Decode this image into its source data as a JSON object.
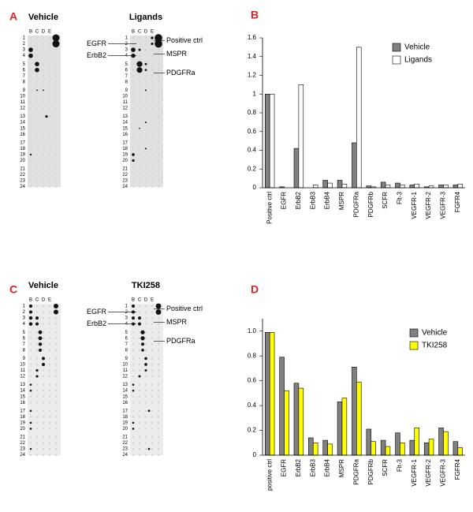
{
  "panel_labels": [
    "A",
    "B",
    "C",
    "D"
  ],
  "blot_rows": [
    1,
    2,
    3,
    4,
    5,
    6,
    7,
    8,
    9,
    10,
    11,
    12,
    13,
    14,
    15,
    16,
    17,
    18,
    19,
    20,
    21,
    22,
    23,
    24
  ],
  "blot_columns": [
    "B",
    "C",
    "D",
    "E"
  ],
  "blots": [
    {
      "title": "Vehicle"
    },
    {
      "title": "Ligands",
      "left_labels": [
        "EGFR",
        "ErbB2"
      ],
      "right_labels": [
        "Positive ctrl",
        "MSPR",
        "PDGFRa"
      ]
    },
    {
      "title": "Vehicle"
    },
    {
      "title": "TKI258",
      "left_labels": [
        "EGFR",
        "ErbB2"
      ],
      "right_labels": [
        "Positive ctrl",
        "MSPR",
        "PDGFRa"
      ]
    }
  ],
  "chart_data": [
    {
      "type": "bar",
      "categories": [
        "Positive ctrl",
        "EGFR",
        "ErbB2",
        "ErbB3",
        "ErbB4",
        "MSPR",
        "PDGFRa",
        "PDGFRb",
        "SCFR",
        "Flt-3",
        "VEGFR-1",
        "VEGFR-2",
        "VEGFR-3",
        "FGFR4"
      ],
      "series": [
        {
          "name": "Vehicle",
          "color": "#808080",
          "values": [
            1.0,
            0.01,
            0.42,
            0.0,
            0.08,
            0.08,
            0.48,
            0.02,
            0.06,
            0.05,
            0.03,
            0.01,
            0.03,
            0.03
          ]
        },
        {
          "name": "Ligands",
          "color": "#ffffff",
          "values": [
            1.0,
            0.0,
            1.1,
            0.03,
            0.05,
            0.04,
            1.5,
            0.01,
            0.03,
            0.03,
            0.04,
            0.02,
            0.03,
            0.04
          ]
        }
      ],
      "ylim": [
        0,
        1.6
      ],
      "yticks": [
        0,
        0.2,
        0.4,
        0.6,
        0.8,
        1,
        1.2,
        1.4,
        1.6
      ],
      "legend": "top-right"
    },
    {
      "type": "bar",
      "categories": [
        "positive ctrl",
        "EGFR",
        "ErbB2",
        "ErbB3",
        "ErbB4",
        "MSPR",
        "PDGFRa",
        "PDGFRb",
        "SCFR",
        "Flt-3",
        "VEGFR-1",
        "VEGFR-2",
        "VEGFR-3",
        "FGFR4"
      ],
      "series": [
        {
          "name": "Vehicle",
          "color": "#808080",
          "values": [
            0.99,
            0.79,
            0.58,
            0.14,
            0.12,
            0.43,
            0.71,
            0.21,
            0.12,
            0.18,
            0.12,
            0.1,
            0.22,
            0.11
          ]
        },
        {
          "name": "TKI258",
          "color": "#ffff00",
          "values": [
            0.99,
            0.52,
            0.54,
            0.1,
            0.09,
            0.46,
            0.59,
            0.11,
            0.07,
            0.1,
            0.22,
            0.13,
            0.19,
            0.06
          ]
        }
      ],
      "ylim": [
        0,
        1.1
      ],
      "yticks": [
        0,
        0.2,
        0.4,
        0.6,
        0.8,
        {
          "value": 1,
          "label": "1.0"
        }
      ],
      "legend": "top-right"
    }
  ]
}
